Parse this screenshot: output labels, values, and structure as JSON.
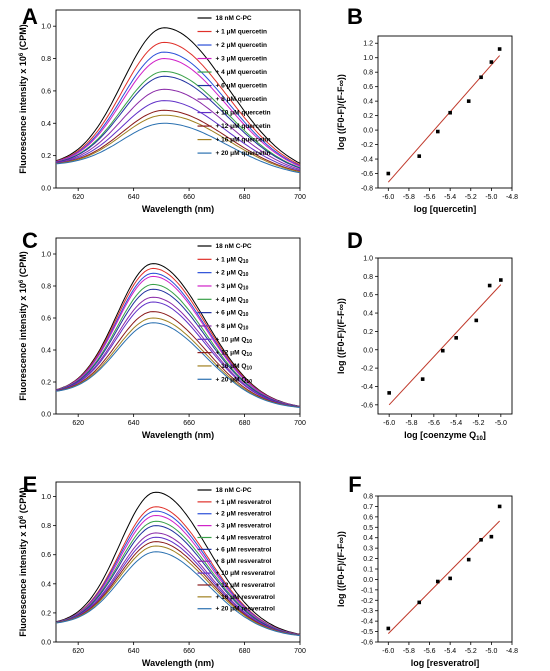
{
  "panels": [
    "A",
    "B",
    "C",
    "D",
    "E",
    "F"
  ],
  "chart_data": [
    {
      "panel": "A",
      "type": "line",
      "xlabel": "Wavelength (nm)",
      "ylabel": "Fluorescence intensity x 10^6 (CPM)",
      "ylabel_parts": {
        "pre": "Fluorescence intensity x 10",
        "sup": "6",
        "post": " (CPM)"
      },
      "xlim": [
        612,
        700
      ],
      "ylim": [
        0,
        1.1
      ],
      "xticks": [
        620,
        640,
        660,
        680,
        700
      ],
      "yticks": [
        0.0,
        0.2,
        0.4,
        0.6,
        0.8,
        1.0
      ],
      "peak_x": 651,
      "width_left": 15,
      "width_right": 22.8,
      "baseline_left": 0.14,
      "baseline_right": 0.06,
      "legend": "top-right",
      "series": [
        {
          "name": "18 nM C-PC",
          "peak": 0.99,
          "color": "#000000"
        },
        {
          "name": "+ 1 μM quercetin",
          "peak": 0.9,
          "color": "#e0302a"
        },
        {
          "name": "+ 2 μM quercetin",
          "peak": 0.84,
          "color": "#2a4fd8"
        },
        {
          "name": "+ 3 μM quercetin",
          "peak": 0.8,
          "color": "#d020c8"
        },
        {
          "name": "+ 4 μM quercetin",
          "peak": 0.72,
          "color": "#38a048"
        },
        {
          "name": "+ 6 μM quercetin",
          "peak": 0.69,
          "color": "#2030a0"
        },
        {
          "name": "+ 8 μM quercetin",
          "peak": 0.61,
          "color": "#8a2aa8"
        },
        {
          "name": "+ 10 μM quercetin",
          "peak": 0.54,
          "color": "#6030c8"
        },
        {
          "name": "+ 12 μM quercetin",
          "peak": 0.48,
          "color": "#8a1a1a"
        },
        {
          "name": "+ 16 μM quercetin",
          "peak": 0.45,
          "color": "#a08020"
        },
        {
          "name": "+ 20 μM quercetin",
          "peak": 0.4,
          "color": "#2a70b0"
        }
      ]
    },
    {
      "panel": "B",
      "type": "scatter",
      "xlabel": "log [quercetin]",
      "xlabel_parts": {
        "pre": "log [quercetin]",
        "sub": "",
        "post": ""
      },
      "ylabel": "log ((F0-F)/(F-F∞))",
      "xlim": [
        -6.1,
        -4.8
      ],
      "ylim": [
        -0.8,
        1.3
      ],
      "xticks": [
        -6.0,
        -5.8,
        -5.6,
        -5.4,
        -5.2,
        -5.0,
        -4.8
      ],
      "yticks": [
        -0.8,
        -0.6,
        -0.4,
        -0.2,
        0.0,
        0.2,
        0.4,
        0.6,
        0.8,
        1.0,
        1.2
      ],
      "grid": false,
      "points": [
        {
          "x": -6.0,
          "y": -0.6
        },
        {
          "x": -5.7,
          "y": -0.36
        },
        {
          "x": -5.52,
          "y": -0.02
        },
        {
          "x": -5.4,
          "y": 0.24
        },
        {
          "x": -5.22,
          "y": 0.4
        },
        {
          "x": -5.1,
          "y": 0.73
        },
        {
          "x": -5.0,
          "y": 0.94
        },
        {
          "x": -4.92,
          "y": 1.12
        }
      ],
      "fit": {
        "x1": -6.0,
        "y1": -0.72,
        "x2": -4.92,
        "y2": 1.03,
        "color": "#c0392b"
      }
    },
    {
      "panel": "C",
      "type": "line",
      "xlabel": "Wavelength (nm)",
      "ylabel": "Fluorescence intensity x 10^6 (CPM)",
      "ylabel_parts": {
        "pre": "Fluorescence intensity x 10",
        "sup": "6",
        "post": " (CPM)"
      },
      "xlim": [
        612,
        700
      ],
      "ylim": [
        0,
        1.1
      ],
      "xticks": [
        620,
        640,
        660,
        680,
        700
      ],
      "yticks": [
        0.0,
        0.2,
        0.4,
        0.6,
        0.8,
        1.0
      ],
      "peak_x": 647,
      "width_left": 13,
      "width_right": 19,
      "baseline_left": 0.13,
      "baseline_right": 0.03,
      "legend": "top-right",
      "series": [
        {
          "name": "18 nM C-PC",
          "peak": 0.94,
          "color": "#000000"
        },
        {
          "name": "+ 1 μM Q10",
          "label_pre": "+ 1 μM Q",
          "label_sub": "10",
          "peak": 0.91,
          "color": "#e0302a"
        },
        {
          "name": "+ 2 μM Q10",
          "label_pre": "+ 2 μM Q",
          "label_sub": "10",
          "peak": 0.88,
          "color": "#2a4fd8"
        },
        {
          "name": "+ 3 μM Q10",
          "label_pre": "+ 3 μM Q",
          "label_sub": "10",
          "peak": 0.86,
          "color": "#d020c8"
        },
        {
          "name": "+ 4 μM Q10",
          "label_pre": "+ 4 μM Q",
          "label_sub": "10",
          "peak": 0.81,
          "color": "#38a048"
        },
        {
          "name": "+ 6 μM Q10",
          "label_pre": "+ 6 μM Q",
          "label_sub": "10",
          "peak": 0.78,
          "color": "#2030a0"
        },
        {
          "name": "+ 8 μM Q10",
          "label_pre": "+ 8 μM Q",
          "label_sub": "10",
          "peak": 0.73,
          "color": "#8a2aa8"
        },
        {
          "name": "+ 10 μM Q10",
          "label_pre": "+ 10 μM Q",
          "label_sub": "10",
          "peak": 0.7,
          "color": "#6030c8"
        },
        {
          "name": "+ 12 μM Q10",
          "label_pre": "+ 12 μM Q",
          "label_sub": "10",
          "peak": 0.64,
          "color": "#8a1a1a"
        },
        {
          "name": "+ 16 μM Q10",
          "label_pre": "+ 16 μM Q",
          "label_sub": "10",
          "peak": 0.6,
          "color": "#a08020"
        },
        {
          "name": "+ 20 μM Q10",
          "label_pre": "+ 20 μM Q",
          "label_sub": "10",
          "peak": 0.57,
          "color": "#2a70b0"
        }
      ]
    },
    {
      "panel": "D",
      "type": "scatter",
      "xlabel": "log [coenzyme Q10]",
      "xlabel_parts": {
        "pre": "log [coenzyme Q",
        "sub": "10",
        "post": "]"
      },
      "ylabel": "log ((F0-F)/(F-F∞))",
      "xlim": [
        -6.1,
        -4.9
      ],
      "ylim": [
        -0.7,
        1.0
      ],
      "xticks": [
        -6.0,
        -5.8,
        -5.6,
        -5.4,
        -5.2,
        -5.0
      ],
      "yticks": [
        -0.6,
        -0.4,
        -0.2,
        0.0,
        0.2,
        0.4,
        0.6,
        0.8,
        1.0
      ],
      "grid": false,
      "points": [
        {
          "x": -6.0,
          "y": -0.47
        },
        {
          "x": -5.7,
          "y": -0.32
        },
        {
          "x": -5.52,
          "y": -0.01
        },
        {
          "x": -5.4,
          "y": 0.13
        },
        {
          "x": -5.22,
          "y": 0.32
        },
        {
          "x": -5.1,
          "y": 0.7
        },
        {
          "x": -5.0,
          "y": 0.76
        }
      ],
      "fit": {
        "x1": -6.0,
        "y1": -0.6,
        "x2": -5.0,
        "y2": 0.71,
        "color": "#c0392b"
      }
    },
    {
      "panel": "E",
      "type": "line",
      "xlabel": "Wavelength (nm)",
      "ylabel": "Fluorescence intensity x 10^6 (CPM)",
      "ylabel_parts": {
        "pre": "Fluorescence intensity x 10",
        "sup": "6",
        "post": " (CPM)"
      },
      "xlim": [
        612,
        700
      ],
      "ylim": [
        0,
        1.1
      ],
      "xticks": [
        620,
        640,
        660,
        680,
        700
      ],
      "yticks": [
        0.0,
        0.2,
        0.4,
        0.6,
        0.8,
        1.0
      ],
      "peak_x": 648,
      "width_left": 13,
      "width_right": 19,
      "baseline_left": 0.12,
      "baseline_right": 0.03,
      "legend": "top-right",
      "series": [
        {
          "name": "18 nM  C-PC",
          "peak": 1.03,
          "color": "#000000"
        },
        {
          "name": "+ 1 μM resveratrol",
          "peak": 0.93,
          "color": "#e0302a"
        },
        {
          "name": "+ 2 μM resveratrol",
          "peak": 0.9,
          "color": "#2a4fd8"
        },
        {
          "name": "+ 3 μM resveratrol",
          "peak": 0.87,
          "color": "#d020c8"
        },
        {
          "name": "+ 4 μM resveratrol",
          "peak": 0.83,
          "color": "#38a048"
        },
        {
          "name": "+ 6 μM resveratrol",
          "peak": 0.8,
          "color": "#2030a0"
        },
        {
          "name": "+ 8 μM resveratrol",
          "peak": 0.75,
          "color": "#8a2aa8"
        },
        {
          "name": "+ 10 μM resveratrol",
          "peak": 0.72,
          "color": "#6030c8"
        },
        {
          "name": "+ 12 μM resveratrol",
          "peak": 0.69,
          "color": "#8a1a1a"
        },
        {
          "name": "+ 16 μM resveratrol",
          "peak": 0.66,
          "color": "#a08020"
        },
        {
          "name": "+ 20 μM resveratrol",
          "peak": 0.62,
          "color": "#2a70b0"
        }
      ]
    },
    {
      "panel": "F",
      "type": "scatter",
      "xlabel": "log [resveratrol]",
      "xlabel_parts": {
        "pre": "log [resveratrol]",
        "sub": "",
        "post": ""
      },
      "ylabel": "log ((F0-F)/(F-F∞))",
      "xlim": [
        -6.1,
        -4.8
      ],
      "ylim": [
        -0.6,
        0.8
      ],
      "xticks": [
        -6.0,
        -5.8,
        -5.6,
        -5.4,
        -5.2,
        -5.0,
        -4.8
      ],
      "yticks": [
        -0.6,
        -0.5,
        -0.4,
        -0.3,
        -0.2,
        -0.1,
        0.0,
        0.1,
        0.2,
        0.3,
        0.4,
        0.5,
        0.6,
        0.7,
        0.8
      ],
      "grid": false,
      "points": [
        {
          "x": -6.0,
          "y": -0.47
        },
        {
          "x": -5.7,
          "y": -0.22
        },
        {
          "x": -5.52,
          "y": -0.02
        },
        {
          "x": -5.4,
          "y": 0.01
        },
        {
          "x": -5.22,
          "y": 0.19
        },
        {
          "x": -5.1,
          "y": 0.38
        },
        {
          "x": -5.0,
          "y": 0.41
        },
        {
          "x": -4.92,
          "y": 0.7
        }
      ],
      "fit": {
        "x1": -6.0,
        "y1": -0.52,
        "x2": -4.92,
        "y2": 0.56,
        "color": "#c0392b"
      }
    }
  ]
}
